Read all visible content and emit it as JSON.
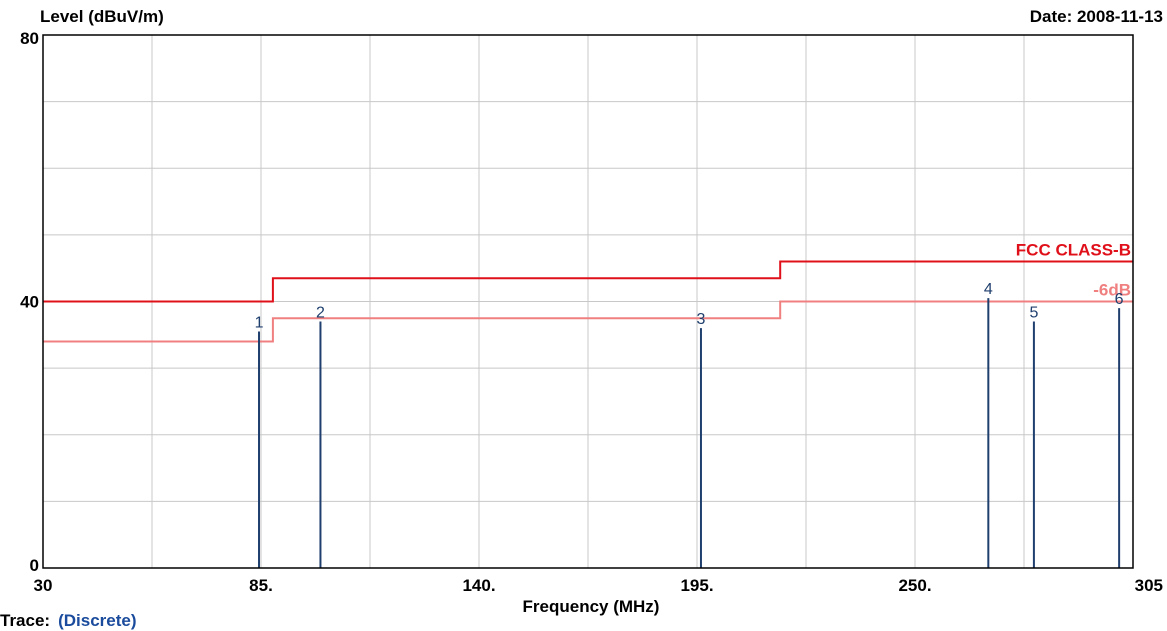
{
  "header": {
    "level_label": "Level (dBuV/m)",
    "date_label": "Date: 2008-11-13"
  },
  "trace": {
    "label": "Trace:",
    "value": "(Discrete)"
  },
  "colors": {
    "limit": "#e0101a",
    "margin": "#f08080",
    "marker": "#1f3f6e",
    "grid": "#c8c8c8",
    "frame": "#000000"
  },
  "chart_data": {
    "type": "line",
    "xlabel": "Frequency (MHz)",
    "ylabel": "Level (dBuV/m)",
    "xlim": [
      30,
      305
    ],
    "ylim": [
      0,
      80
    ],
    "x_ticks": [
      {
        "value": 30,
        "label": "30"
      },
      {
        "value": 85,
        "label": "85."
      },
      {
        "value": 140,
        "label": "140."
      },
      {
        "value": 195,
        "label": "195."
      },
      {
        "value": 250,
        "label": "250."
      },
      {
        "value": 305,
        "label": "305"
      }
    ],
    "y_ticks": [
      {
        "value": 0,
        "label": "0"
      },
      {
        "value": 40,
        "label": "40"
      },
      {
        "value": 80,
        "label": "80"
      }
    ],
    "x_grid": [
      30,
      57.5,
      85,
      112.5,
      140,
      167.5,
      195,
      222.5,
      250,
      277.5,
      305
    ],
    "y_grid": [
      0,
      10,
      20,
      30,
      40,
      50,
      60,
      70,
      80
    ],
    "grid": true,
    "series": [
      {
        "name": "FCC CLASS-B",
        "color": "#e0101a",
        "x": [
          30,
          88,
          88,
          216,
          216,
          305
        ],
        "y": [
          40,
          40,
          43.5,
          43.5,
          46,
          46
        ]
      },
      {
        "name": "-6dB",
        "color": "#f08080",
        "x": [
          30,
          88,
          88,
          216,
          216,
          305
        ],
        "y": [
          34,
          34,
          37.5,
          37.5,
          40,
          40
        ]
      }
    ],
    "markers": [
      {
        "label": "1",
        "x": 84.5,
        "y": 35.5
      },
      {
        "label": "2",
        "x": 100,
        "y": 37
      },
      {
        "label": "3",
        "x": 196,
        "y": 36
      },
      {
        "label": "4",
        "x": 268.5,
        "y": 40.5
      },
      {
        "label": "5",
        "x": 280,
        "y": 37
      },
      {
        "label": "6",
        "x": 301.5,
        "y": 39
      }
    ]
  }
}
